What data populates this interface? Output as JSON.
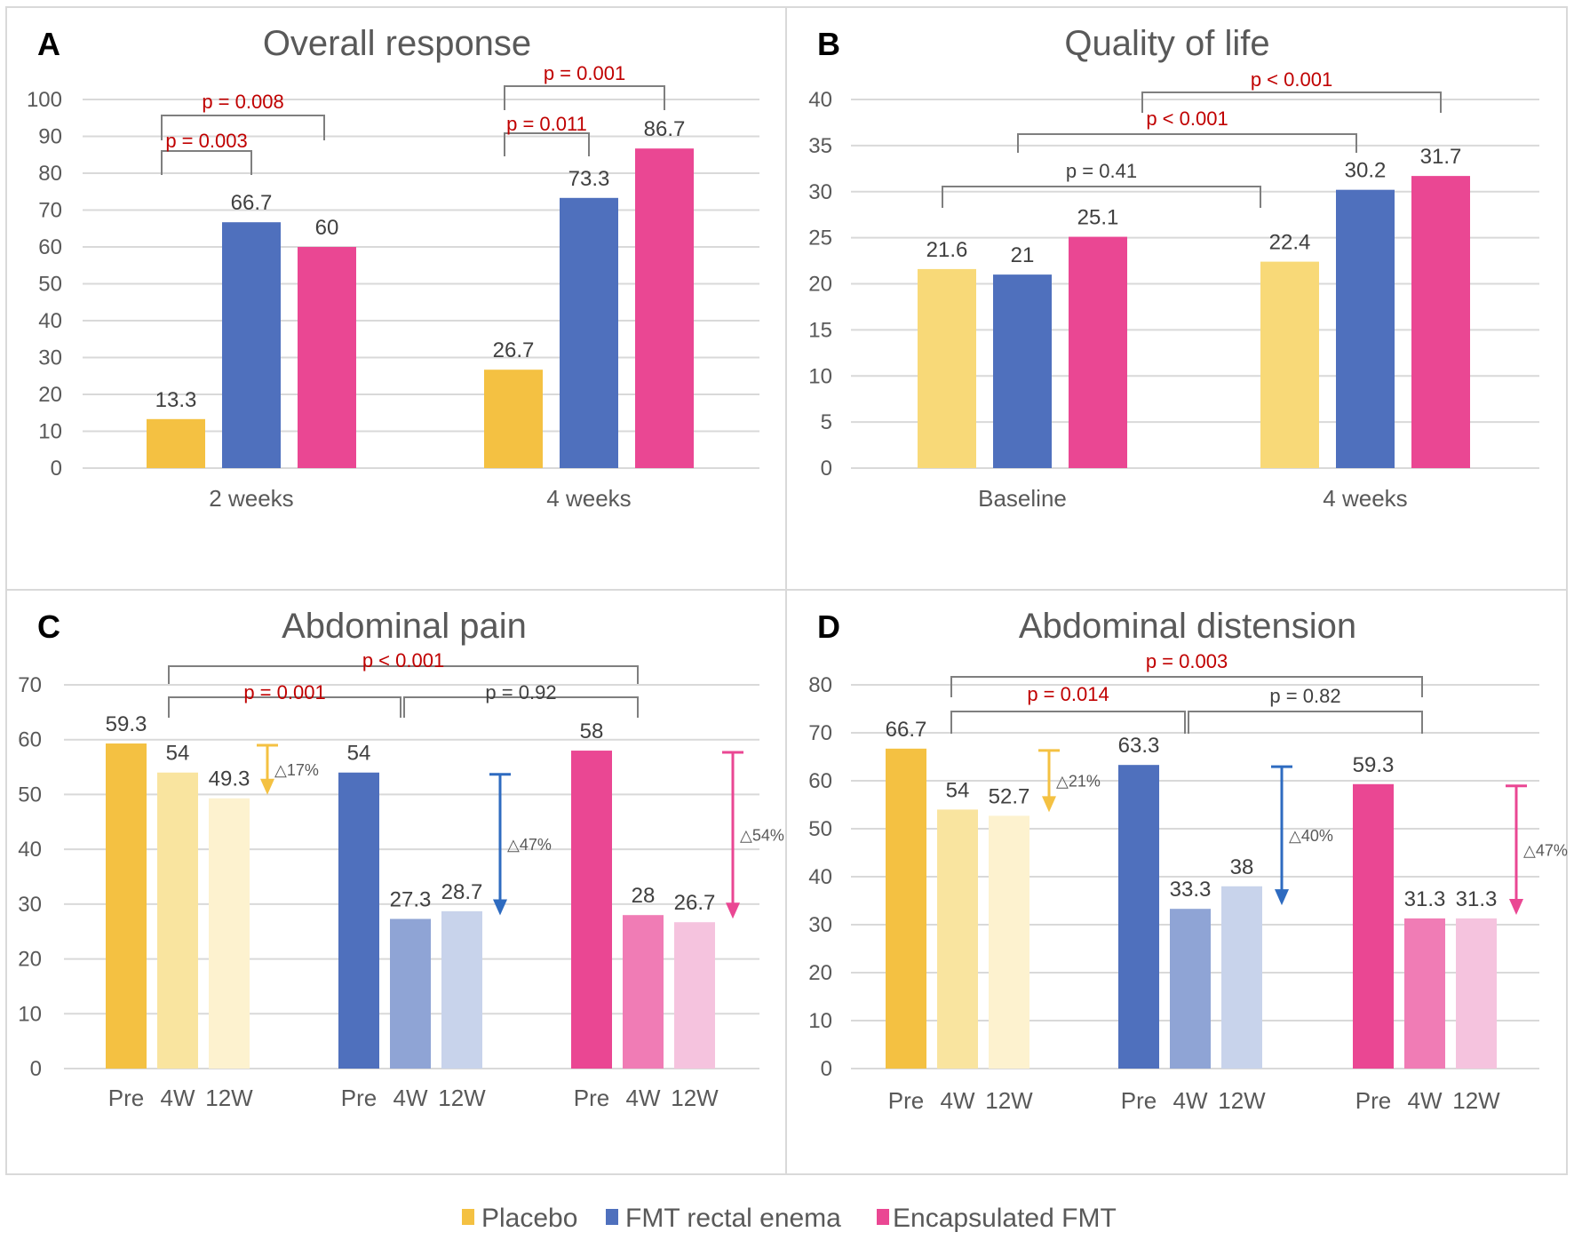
{
  "figure": {
    "series_colors": {
      "Placebo": "#f4c142",
      "FMT rectal enema": "#4f70bd",
      "Encapsulated FMT": "#ea4793"
    },
    "pvalue_significant_color": "#c00000",
    "pvalue_nonsignificant_color": "#404040",
    "legend": [
      {
        "label": "Placebo",
        "color": "#f4c142"
      },
      {
        "label": "FMT rectal enema",
        "color": "#4f70bd"
      },
      {
        "label": "Encapsulated FMT",
        "color": "#ea4793"
      }
    ]
  },
  "chart_data": [
    {
      "panel": "A",
      "type": "bar",
      "title": "Overall response",
      "categories": [
        "2 weeks",
        "4 weeks"
      ],
      "series": [
        {
          "name": "Placebo",
          "values": [
            13.3,
            26.7
          ],
          "color": "#f4c142"
        },
        {
          "name": "FMT rectal enema",
          "values": [
            66.7,
            73.3
          ],
          "color": "#4f70bd"
        },
        {
          "name": "Encapsulated FMT",
          "values": [
            60,
            86.7
          ],
          "color": "#ea4793"
        }
      ],
      "ylim": [
        0,
        100
      ],
      "yticks": [
        0,
        10,
        20,
        30,
        40,
        50,
        60,
        70,
        80,
        90,
        100
      ],
      "grid": true,
      "annotations": [
        {
          "text": "p = 0.003",
          "between": [
            "2 weeks:Placebo",
            "2 weeks:FMT rectal enema"
          ],
          "significant": true
        },
        {
          "text": "p = 0.008",
          "between": [
            "2 weeks:Placebo",
            "2 weeks:Encapsulated FMT"
          ],
          "significant": true
        },
        {
          "text": "p = 0.011",
          "between": [
            "4 weeks:Placebo",
            "4 weeks:FMT rectal enema"
          ],
          "significant": true
        },
        {
          "text": "p = 0.001",
          "between": [
            "4 weeks:Placebo",
            "4 weeks:Encapsulated FMT"
          ],
          "significant": true
        }
      ]
    },
    {
      "panel": "B",
      "type": "bar",
      "title": "Quality of life",
      "categories": [
        "Baseline",
        "4 weeks"
      ],
      "series": [
        {
          "name": "Placebo",
          "values": [
            21.6,
            22.4
          ],
          "color": "#f8d978"
        },
        {
          "name": "FMT rectal enema",
          "values": [
            21,
            30.2
          ],
          "color": "#4f70bd"
        },
        {
          "name": "Encapsulated FMT",
          "values": [
            25.1,
            31.7
          ],
          "color": "#ea4793"
        }
      ],
      "ylim": [
        0,
        40
      ],
      "yticks": [
        0,
        5,
        10,
        15,
        20,
        25,
        30,
        35,
        40
      ],
      "grid": true,
      "annotations": [
        {
          "text": "p = 0.41",
          "between": [
            "Baseline:Placebo",
            "4 weeks:Placebo"
          ],
          "significant": false
        },
        {
          "text": "p < 0.001",
          "between": [
            "Baseline:FMT rectal enema",
            "4 weeks:FMT rectal enema"
          ],
          "significant": true
        },
        {
          "text": "p < 0.001",
          "between": [
            "Baseline:Encapsulated FMT",
            "4 weeks:Encapsulated FMT"
          ],
          "significant": true
        }
      ]
    },
    {
      "panel": "C",
      "type": "bar",
      "title": "Abdominal pain",
      "groups": [
        "Placebo",
        "FMT rectal enema",
        "Encapsulated FMT"
      ],
      "categories": [
        "Pre",
        "4W",
        "12W"
      ],
      "series": [
        {
          "name": "Placebo",
          "values": [
            59.3,
            54,
            49.3
          ],
          "colors": [
            "#f4c142",
            "#f9e49f",
            "#fdf2cf"
          ],
          "delta": "△17%"
        },
        {
          "name": "FMT rectal enema",
          "values": [
            54,
            27.3,
            28.7
          ],
          "colors": [
            "#4f70bd",
            "#8fa4d5",
            "#c8d3eb"
          ],
          "delta": "△47%"
        },
        {
          "name": "Encapsulated FMT",
          "values": [
            58,
            28,
            26.7
          ],
          "colors": [
            "#ea4793",
            "#f07cb5",
            "#f5c3de"
          ],
          "delta": "△54%"
        }
      ],
      "ylim": [
        0,
        70
      ],
      "yticks": [
        0,
        10,
        20,
        30,
        40,
        50,
        60,
        70
      ],
      "grid": true,
      "annotations": [
        {
          "text": "p = 0.001",
          "between": [
            "Placebo",
            "FMT rectal enema"
          ],
          "significant": true
        },
        {
          "text": "p = 0.92",
          "between": [
            "FMT rectal enema",
            "Encapsulated FMT"
          ],
          "significant": false
        },
        {
          "text": "p < 0.001",
          "between": [
            "Placebo",
            "Encapsulated FMT"
          ],
          "significant": true
        }
      ]
    },
    {
      "panel": "D",
      "type": "bar",
      "title": "Abdominal distension",
      "groups": [
        "Placebo",
        "FMT rectal enema",
        "Encapsulated FMT"
      ],
      "categories": [
        "Pre",
        "4W",
        "12W"
      ],
      "series": [
        {
          "name": "Placebo",
          "values": [
            66.7,
            54,
            52.7
          ],
          "colors": [
            "#f4c142",
            "#f9e49f",
            "#fdf2cf"
          ],
          "delta": "△21%"
        },
        {
          "name": "FMT rectal enema",
          "values": [
            63.3,
            33.3,
            38
          ],
          "colors": [
            "#4f70bd",
            "#8fa4d5",
            "#c8d3eb"
          ],
          "delta": "△40%"
        },
        {
          "name": "Encapsulated FMT",
          "values": [
            59.3,
            31.3,
            31.3
          ],
          "colors": [
            "#ea4793",
            "#f07cb5",
            "#f5c3de"
          ],
          "delta": "△47%"
        }
      ],
      "ylim": [
        0,
        80
      ],
      "yticks": [
        0,
        10,
        20,
        30,
        40,
        50,
        60,
        70,
        80
      ],
      "grid": true,
      "annotations": [
        {
          "text": "p = 0.014",
          "between": [
            "Placebo",
            "FMT rectal enema"
          ],
          "significant": true
        },
        {
          "text": "p = 0.82",
          "between": [
            "FMT rectal enema",
            "Encapsulated FMT"
          ],
          "significant": false
        },
        {
          "text": "p = 0.003",
          "between": [
            "Placebo",
            "Encapsulated FMT"
          ],
          "significant": true
        }
      ]
    }
  ]
}
